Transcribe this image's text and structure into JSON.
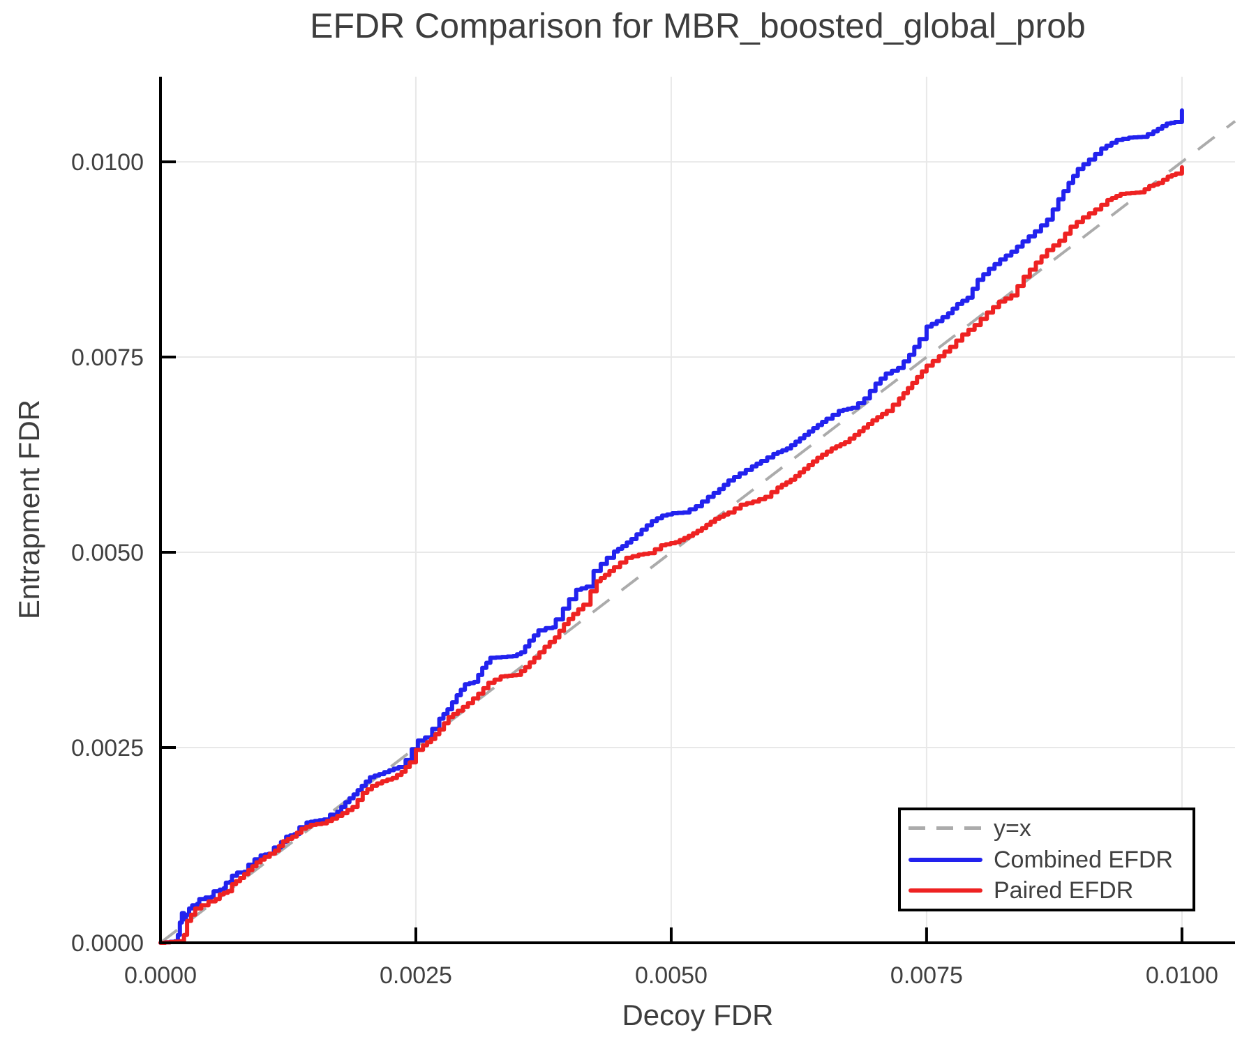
{
  "chart_data": {
    "type": "line",
    "title": "EFDR Comparison for MBR_boosted_global_prob",
    "xlabel": "Decoy FDR",
    "ylabel": "Entrapment FDR",
    "xlim": [
      0,
      0.01052
    ],
    "ylim": [
      0,
      0.01109
    ],
    "grid": true,
    "legend_position": "lower right",
    "tick_values": [
      0,
      0.0025,
      0.005,
      0.0075,
      0.01
    ],
    "xtick_labels": [
      "0.0000",
      "0.0025",
      "0.0050",
      "0.0075",
      "0.0100"
    ],
    "ytick_labels": [
      "0.0000",
      "0.0025",
      "0.0050",
      "0.0075",
      "0.0100"
    ],
    "colors": {
      "grid": "#e8e8e8",
      "axis": "#000000",
      "text": "#404040",
      "background": "#ffffff"
    },
    "reference_line": {
      "label": "y=x",
      "style": "dashed",
      "color": "#ababab",
      "from": [
        0,
        0
      ],
      "to": [
        0.01052,
        0.01052
      ]
    },
    "series": [
      {
        "name": "Combined EFDR",
        "color": "#2222ee",
        "points": [
          [
            0.0,
            0.0
          ],
          [
            0.00014,
            2e-05
          ],
          [
            0.00017,
            0.0001
          ],
          [
            0.00019,
            0.00026
          ],
          [
            0.00021,
            0.00038
          ],
          [
            0.00023,
            0.0003
          ],
          [
            0.00025,
            0.00036
          ],
          [
            0.00028,
            0.00044
          ],
          [
            0.00031,
            0.00048
          ],
          [
            0.00036,
            0.0005
          ],
          [
            0.00038,
            0.00056
          ],
          [
            0.00044,
            0.00058
          ],
          [
            0.0005,
            0.00059
          ],
          [
            0.00052,
            0.00066
          ],
          [
            0.00058,
            0.00068
          ],
          [
            0.00062,
            0.0007
          ],
          [
            0.00064,
            0.00077
          ],
          [
            0.00068,
            0.00078
          ],
          [
            0.0007,
            0.00086
          ],
          [
            0.00075,
            0.0009
          ],
          [
            0.00082,
            0.00091
          ],
          [
            0.00086,
            0.001
          ],
          [
            0.00092,
            0.00107
          ],
          [
            0.00098,
            0.00112
          ],
          [
            0.00106,
            0.00114
          ],
          [
            0.00111,
            0.00122
          ],
          [
            0.00118,
            0.00129
          ],
          [
            0.00123,
            0.00136
          ],
          [
            0.00131,
            0.00139
          ],
          [
            0.00136,
            0.00148
          ],
          [
            0.00143,
            0.00154
          ],
          [
            0.00151,
            0.00156
          ],
          [
            0.0016,
            0.00158
          ],
          [
            0.00166,
            0.00164
          ],
          [
            0.00173,
            0.00168
          ],
          [
            0.00181,
            0.0018
          ],
          [
            0.00189,
            0.0019
          ],
          [
            0.00197,
            0.00201
          ],
          [
            0.00205,
            0.00212
          ],
          [
            0.00214,
            0.00216
          ],
          [
            0.00224,
            0.00221
          ],
          [
            0.00233,
            0.00225
          ],
          [
            0.0024,
            0.00234
          ],
          [
            0.00246,
            0.00248
          ],
          [
            0.00252,
            0.00259
          ],
          [
            0.00259,
            0.00263
          ],
          [
            0.00266,
            0.00274
          ],
          [
            0.00273,
            0.00287
          ],
          [
            0.00281,
            0.00299
          ],
          [
            0.0029,
            0.00317
          ],
          [
            0.00298,
            0.00331
          ],
          [
            0.00307,
            0.00334
          ],
          [
            0.00315,
            0.00352
          ],
          [
            0.00323,
            0.00365
          ],
          [
            0.00334,
            0.00366
          ],
          [
            0.00345,
            0.00367
          ],
          [
            0.00353,
            0.00372
          ],
          [
            0.00361,
            0.00387
          ],
          [
            0.0037,
            0.004
          ],
          [
            0.00377,
            0.00403
          ],
          [
            0.00384,
            0.00404
          ],
          [
            0.00387,
            0.00414
          ],
          [
            0.00394,
            0.00428
          ],
          [
            0.004,
            0.0044
          ],
          [
            0.00407,
            0.00452
          ],
          [
            0.00417,
            0.00456
          ],
          [
            0.00424,
            0.00476
          ],
          [
            0.00431,
            0.00485
          ],
          [
            0.00437,
            0.00493
          ],
          [
            0.00444,
            0.00501
          ],
          [
            0.00452,
            0.00508
          ],
          [
            0.00461,
            0.00517
          ],
          [
            0.00471,
            0.00529
          ],
          [
            0.00481,
            0.0054
          ],
          [
            0.00491,
            0.00547
          ],
          [
            0.00501,
            0.0055
          ],
          [
            0.00512,
            0.00551
          ],
          [
            0.00524,
            0.00559
          ],
          [
            0.00536,
            0.00571
          ],
          [
            0.00547,
            0.00581
          ],
          [
            0.00556,
            0.00592
          ],
          [
            0.00567,
            0.00601
          ],
          [
            0.00579,
            0.0061
          ],
          [
            0.00588,
            0.00617
          ],
          [
            0.006,
            0.00626
          ],
          [
            0.00613,
            0.00633
          ],
          [
            0.00626,
            0.00646
          ],
          [
            0.00639,
            0.00659
          ],
          [
            0.00652,
            0.00671
          ],
          [
            0.00664,
            0.00681
          ],
          [
            0.00677,
            0.00685
          ],
          [
            0.00689,
            0.00697
          ],
          [
            0.007,
            0.00716
          ],
          [
            0.0071,
            0.00729
          ],
          [
            0.00722,
            0.00736
          ],
          [
            0.00733,
            0.00753
          ],
          [
            0.00743,
            0.00773
          ],
          [
            0.0075,
            0.00789
          ],
          [
            0.0076,
            0.00796
          ],
          [
            0.00771,
            0.00806
          ],
          [
            0.0078,
            0.00818
          ],
          [
            0.0079,
            0.00826
          ],
          [
            0.008,
            0.00849
          ],
          [
            0.00811,
            0.00863
          ],
          [
            0.00822,
            0.00875
          ],
          [
            0.00833,
            0.00885
          ],
          [
            0.00844,
            0.00898
          ],
          [
            0.00856,
            0.00911
          ],
          [
            0.00868,
            0.00926
          ],
          [
            0.00879,
            0.00952
          ],
          [
            0.00889,
            0.00973
          ],
          [
            0.00898,
            0.00991
          ],
          [
            0.00909,
            0.01003
          ],
          [
            0.00921,
            0.01017
          ],
          [
            0.00936,
            0.01028
          ],
          [
            0.00948,
            0.01031
          ],
          [
            0.00961,
            0.01032
          ],
          [
            0.00972,
            0.01039
          ],
          [
            0.00985,
            0.01049
          ],
          [
            0.00993,
            0.01051
          ],
          [
            0.01,
            0.01066
          ]
        ]
      },
      {
        "name": "Paired EFDR",
        "color": "#ee2222",
        "points": [
          [
            0.0,
            0.0
          ],
          [
            0.00019,
            2e-05
          ],
          [
            0.00023,
            0.0001
          ],
          [
            0.00026,
            0.00028
          ],
          [
            0.0003,
            0.00036
          ],
          [
            0.00034,
            0.00044
          ],
          [
            0.0004,
            0.00048
          ],
          [
            0.00047,
            0.00053
          ],
          [
            0.00054,
            0.00056
          ],
          [
            0.00058,
            0.00062
          ],
          [
            0.00066,
            0.00066
          ],
          [
            0.0007,
            0.00075
          ],
          [
            0.00078,
            0.00083
          ],
          [
            0.00086,
            0.00093
          ],
          [
            0.00094,
            0.00103
          ],
          [
            0.00102,
            0.0011
          ],
          [
            0.00112,
            0.00118
          ],
          [
            0.0012,
            0.0013
          ],
          [
            0.00129,
            0.00136
          ],
          [
            0.00138,
            0.00146
          ],
          [
            0.00147,
            0.00151
          ],
          [
            0.00158,
            0.00153
          ],
          [
            0.00168,
            0.00159
          ],
          [
            0.00178,
            0.00166
          ],
          [
            0.00188,
            0.00174
          ],
          [
            0.00198,
            0.00192
          ],
          [
            0.00207,
            0.00201
          ],
          [
            0.00217,
            0.00207
          ],
          [
            0.00227,
            0.00211
          ],
          [
            0.00236,
            0.00219
          ],
          [
            0.00244,
            0.00231
          ],
          [
            0.0025,
            0.00247
          ],
          [
            0.00257,
            0.00253
          ],
          [
            0.00265,
            0.00261
          ],
          [
            0.00273,
            0.00273
          ],
          [
            0.00282,
            0.00289
          ],
          [
            0.00291,
            0.00297
          ],
          [
            0.00301,
            0.00307
          ],
          [
            0.00311,
            0.00319
          ],
          [
            0.00321,
            0.00333
          ],
          [
            0.00333,
            0.00341
          ],
          [
            0.00341,
            0.00342
          ],
          [
            0.00349,
            0.00343
          ],
          [
            0.00357,
            0.00353
          ],
          [
            0.00366,
            0.00365
          ],
          [
            0.00376,
            0.00379
          ],
          [
            0.00386,
            0.00391
          ],
          [
            0.00395,
            0.00408
          ],
          [
            0.00404,
            0.00421
          ],
          [
            0.00414,
            0.00433
          ],
          [
            0.00421,
            0.0045
          ],
          [
            0.00427,
            0.00463
          ],
          [
            0.00435,
            0.00471
          ],
          [
            0.00444,
            0.00481
          ],
          [
            0.00456,
            0.00493
          ],
          [
            0.00468,
            0.00497
          ],
          [
            0.00478,
            0.00499
          ],
          [
            0.0049,
            0.00509
          ],
          [
            0.00504,
            0.00513
          ],
          [
            0.00517,
            0.00521
          ],
          [
            0.0053,
            0.00531
          ],
          [
            0.00543,
            0.00543
          ],
          [
            0.00556,
            0.00551
          ],
          [
            0.00568,
            0.00561
          ],
          [
            0.0058,
            0.00565
          ],
          [
            0.00592,
            0.00571
          ],
          [
            0.00604,
            0.00583
          ],
          [
            0.00617,
            0.00593
          ],
          [
            0.0063,
            0.00607
          ],
          [
            0.00643,
            0.00621
          ],
          [
            0.00657,
            0.00633
          ],
          [
            0.0067,
            0.00641
          ],
          [
            0.00684,
            0.00655
          ],
          [
            0.00697,
            0.00669
          ],
          [
            0.00711,
            0.00681
          ],
          [
            0.00723,
            0.00697
          ],
          [
            0.00736,
            0.00717
          ],
          [
            0.0075,
            0.00739
          ],
          [
            0.00762,
            0.00751
          ],
          [
            0.00773,
            0.00763
          ],
          [
            0.00785,
            0.00779
          ],
          [
            0.00797,
            0.00791
          ],
          [
            0.00809,
            0.00807
          ],
          [
            0.00821,
            0.00821
          ],
          [
            0.00833,
            0.00829
          ],
          [
            0.00845,
            0.00853
          ],
          [
            0.00857,
            0.00871
          ],
          [
            0.00868,
            0.00887
          ],
          [
            0.0088,
            0.00899
          ],
          [
            0.00891,
            0.00917
          ],
          [
            0.00903,
            0.00929
          ],
          [
            0.00915,
            0.00939
          ],
          [
            0.00927,
            0.00951
          ],
          [
            0.0094,
            0.00959
          ],
          [
            0.0095,
            0.0096
          ],
          [
            0.00959,
            0.00961
          ],
          [
            0.00968,
            0.00969
          ],
          [
            0.00977,
            0.00973
          ],
          [
            0.00986,
            0.00981
          ],
          [
            0.00994,
            0.00985
          ],
          [
            0.01,
            0.00993
          ]
        ]
      }
    ]
  }
}
